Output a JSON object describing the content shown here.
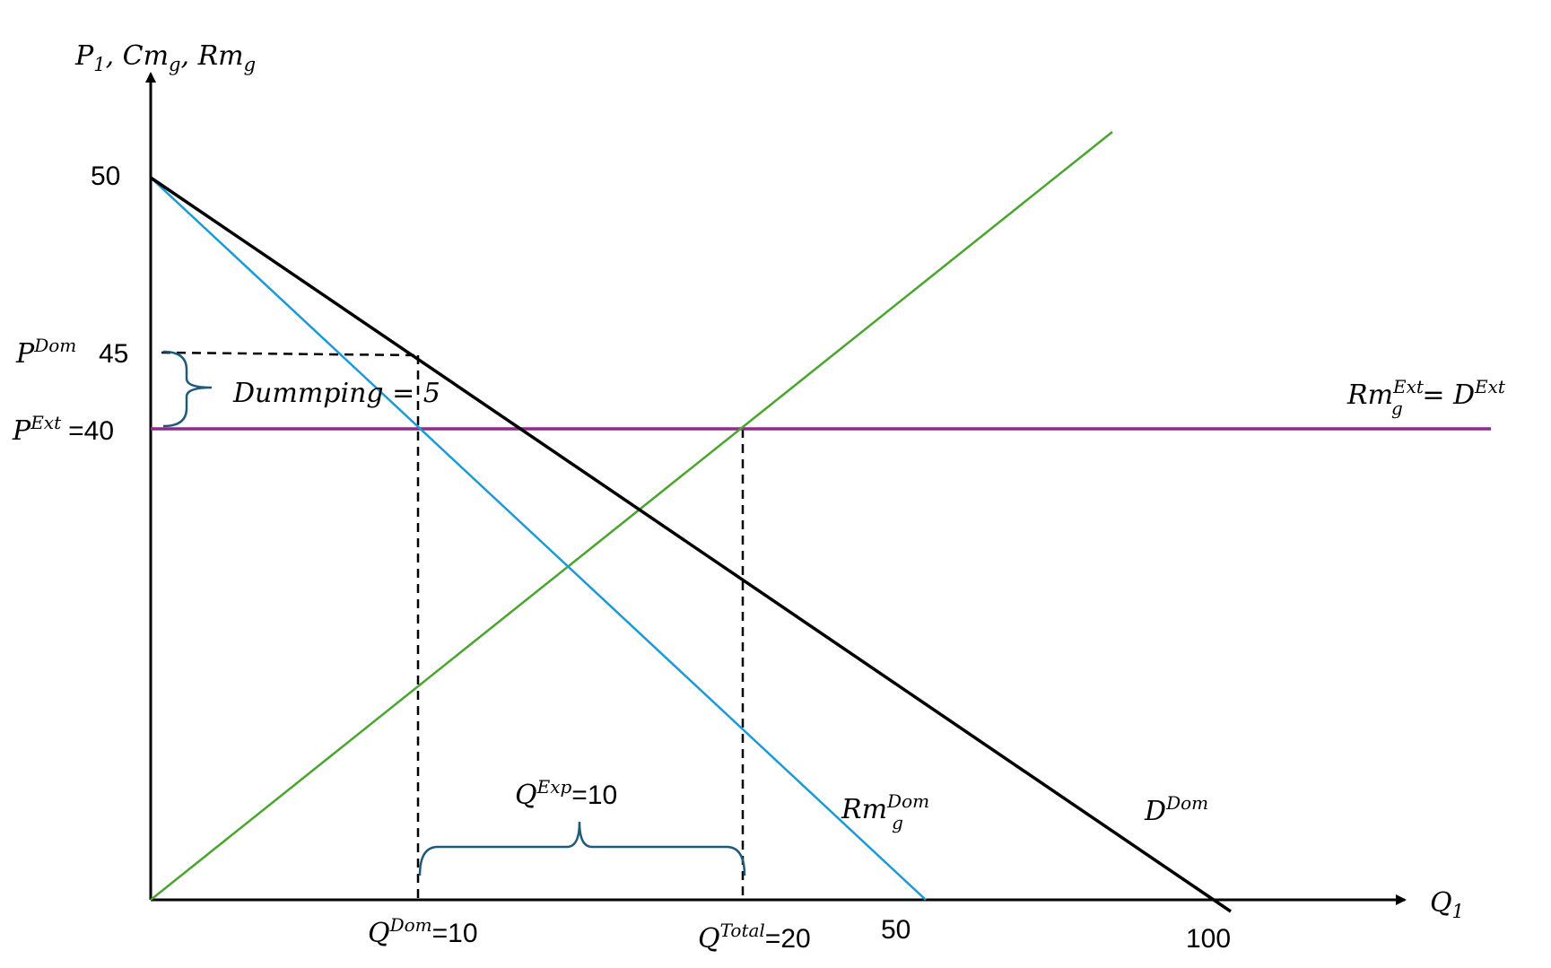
{
  "axes": {
    "y_label": {
      "main": "P",
      "sub1": "1",
      "cm": ", Cm",
      "sub2": "g",
      "rm": ", Rm",
      "sub3": "g"
    },
    "x_label": {
      "main": "Q",
      "sub": "1"
    }
  },
  "ticks": {
    "y_50": "50",
    "y_45": "45",
    "y_40": "=40",
    "x_50": "50",
    "x_100": "100"
  },
  "labels": {
    "p_dom": {
      "main": "P",
      "sup": "Dom"
    },
    "p_ext": {
      "main": "P",
      "sup": "Ext"
    },
    "dumping": "Dummping = 5",
    "rmg_ext": {
      "main": "Rm",
      "sub": "g",
      "sup": "Ext",
      "eq": " = D",
      "sup2": "Ext"
    },
    "q_exp": {
      "main": "Q",
      "sup": "Exp",
      "value": "=10"
    },
    "rmg_dom": {
      "main": "Rm",
      "sub": "g",
      "sup": "Dom"
    },
    "d_dom": {
      "main": "D",
      "sup": "Dom"
    },
    "q_dom": {
      "main": "Q",
      "sup": "Dom",
      "value": "=10"
    },
    "q_total": {
      "main": "Q",
      "sup": "Total",
      "value": "=20"
    }
  },
  "colors": {
    "demand": "#000000",
    "marginal_revenue_dom": "#1a9ad6",
    "marginal_cost": "#4aa52e",
    "external_price": "#8e2a8e",
    "brace": "#1f5a7a",
    "axes": "#000000"
  }
}
